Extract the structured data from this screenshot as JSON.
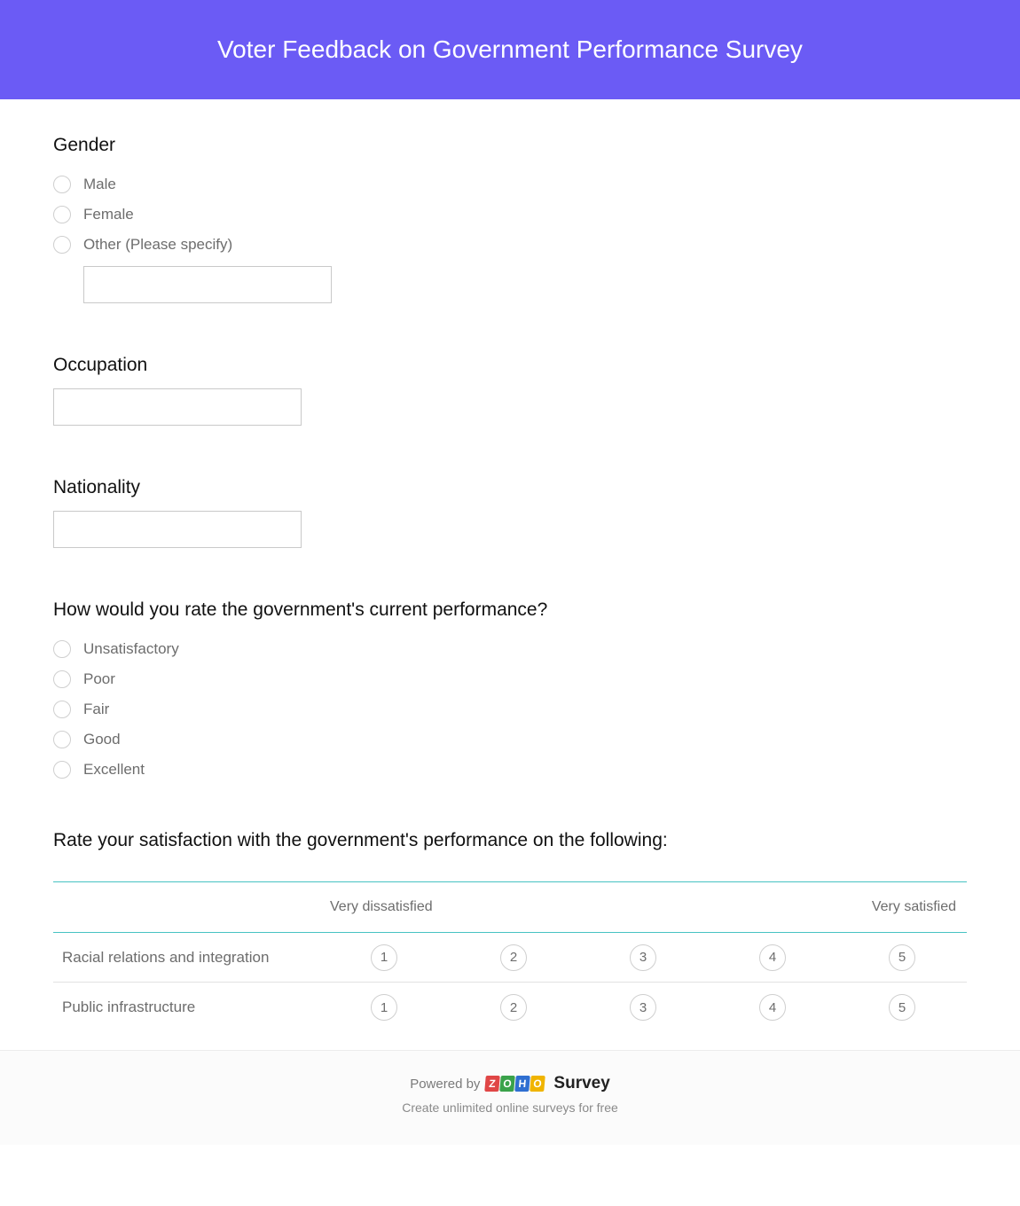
{
  "colors": {
    "header_bg": "#6b5bf5",
    "header_text": "#ffffff",
    "body_bg": "#ffffff",
    "question_text": "#111111",
    "label_text": "#6d6d6d",
    "input_border": "#c9c9c9",
    "radio_border": "#cfcfcf",
    "matrix_accent_border": "#47c3c3",
    "matrix_row_border": "#e2e2e2",
    "footer_bg": "#fbfbfb",
    "footer_border": "#ececec",
    "footer_text": "#7a7a7a",
    "footer_sub_text": "#8a8a8a"
  },
  "header": {
    "title": "Voter Feedback on Government Performance Survey"
  },
  "questions": {
    "gender": {
      "title": "Gender",
      "options": [
        "Male",
        "Female",
        "Other (Please specify)"
      ],
      "other_value": ""
    },
    "occupation": {
      "title": "Occupation",
      "value": ""
    },
    "nationality": {
      "title": "Nationality",
      "value": ""
    },
    "gov_rating": {
      "title": "How would you rate the government's current performance?",
      "options": [
        "Unsatisfactory",
        "Poor",
        "Fair",
        "Good",
        "Excellent"
      ]
    },
    "satisfaction_matrix": {
      "title": "Rate your satisfaction with the government's performance on the following:",
      "scale_low_label": "Very dissatisfied",
      "scale_high_label": "Very satisfied",
      "scale_values": [
        "1",
        "2",
        "3",
        "4",
        "5"
      ],
      "rows": [
        "Racial relations and integration",
        "Public infrastructure"
      ]
    }
  },
  "footer": {
    "powered_by_prefix": "Powered by",
    "zoho_letters": [
      {
        "char": "Z",
        "bg": "#e04646"
      },
      {
        "char": "O",
        "bg": "#3aa24a"
      },
      {
        "char": "H",
        "bg": "#2f6fd1"
      },
      {
        "char": "O",
        "bg": "#f0b400"
      }
    ],
    "survey_word": "Survey",
    "tagline": "Create unlimited online surveys for free"
  }
}
